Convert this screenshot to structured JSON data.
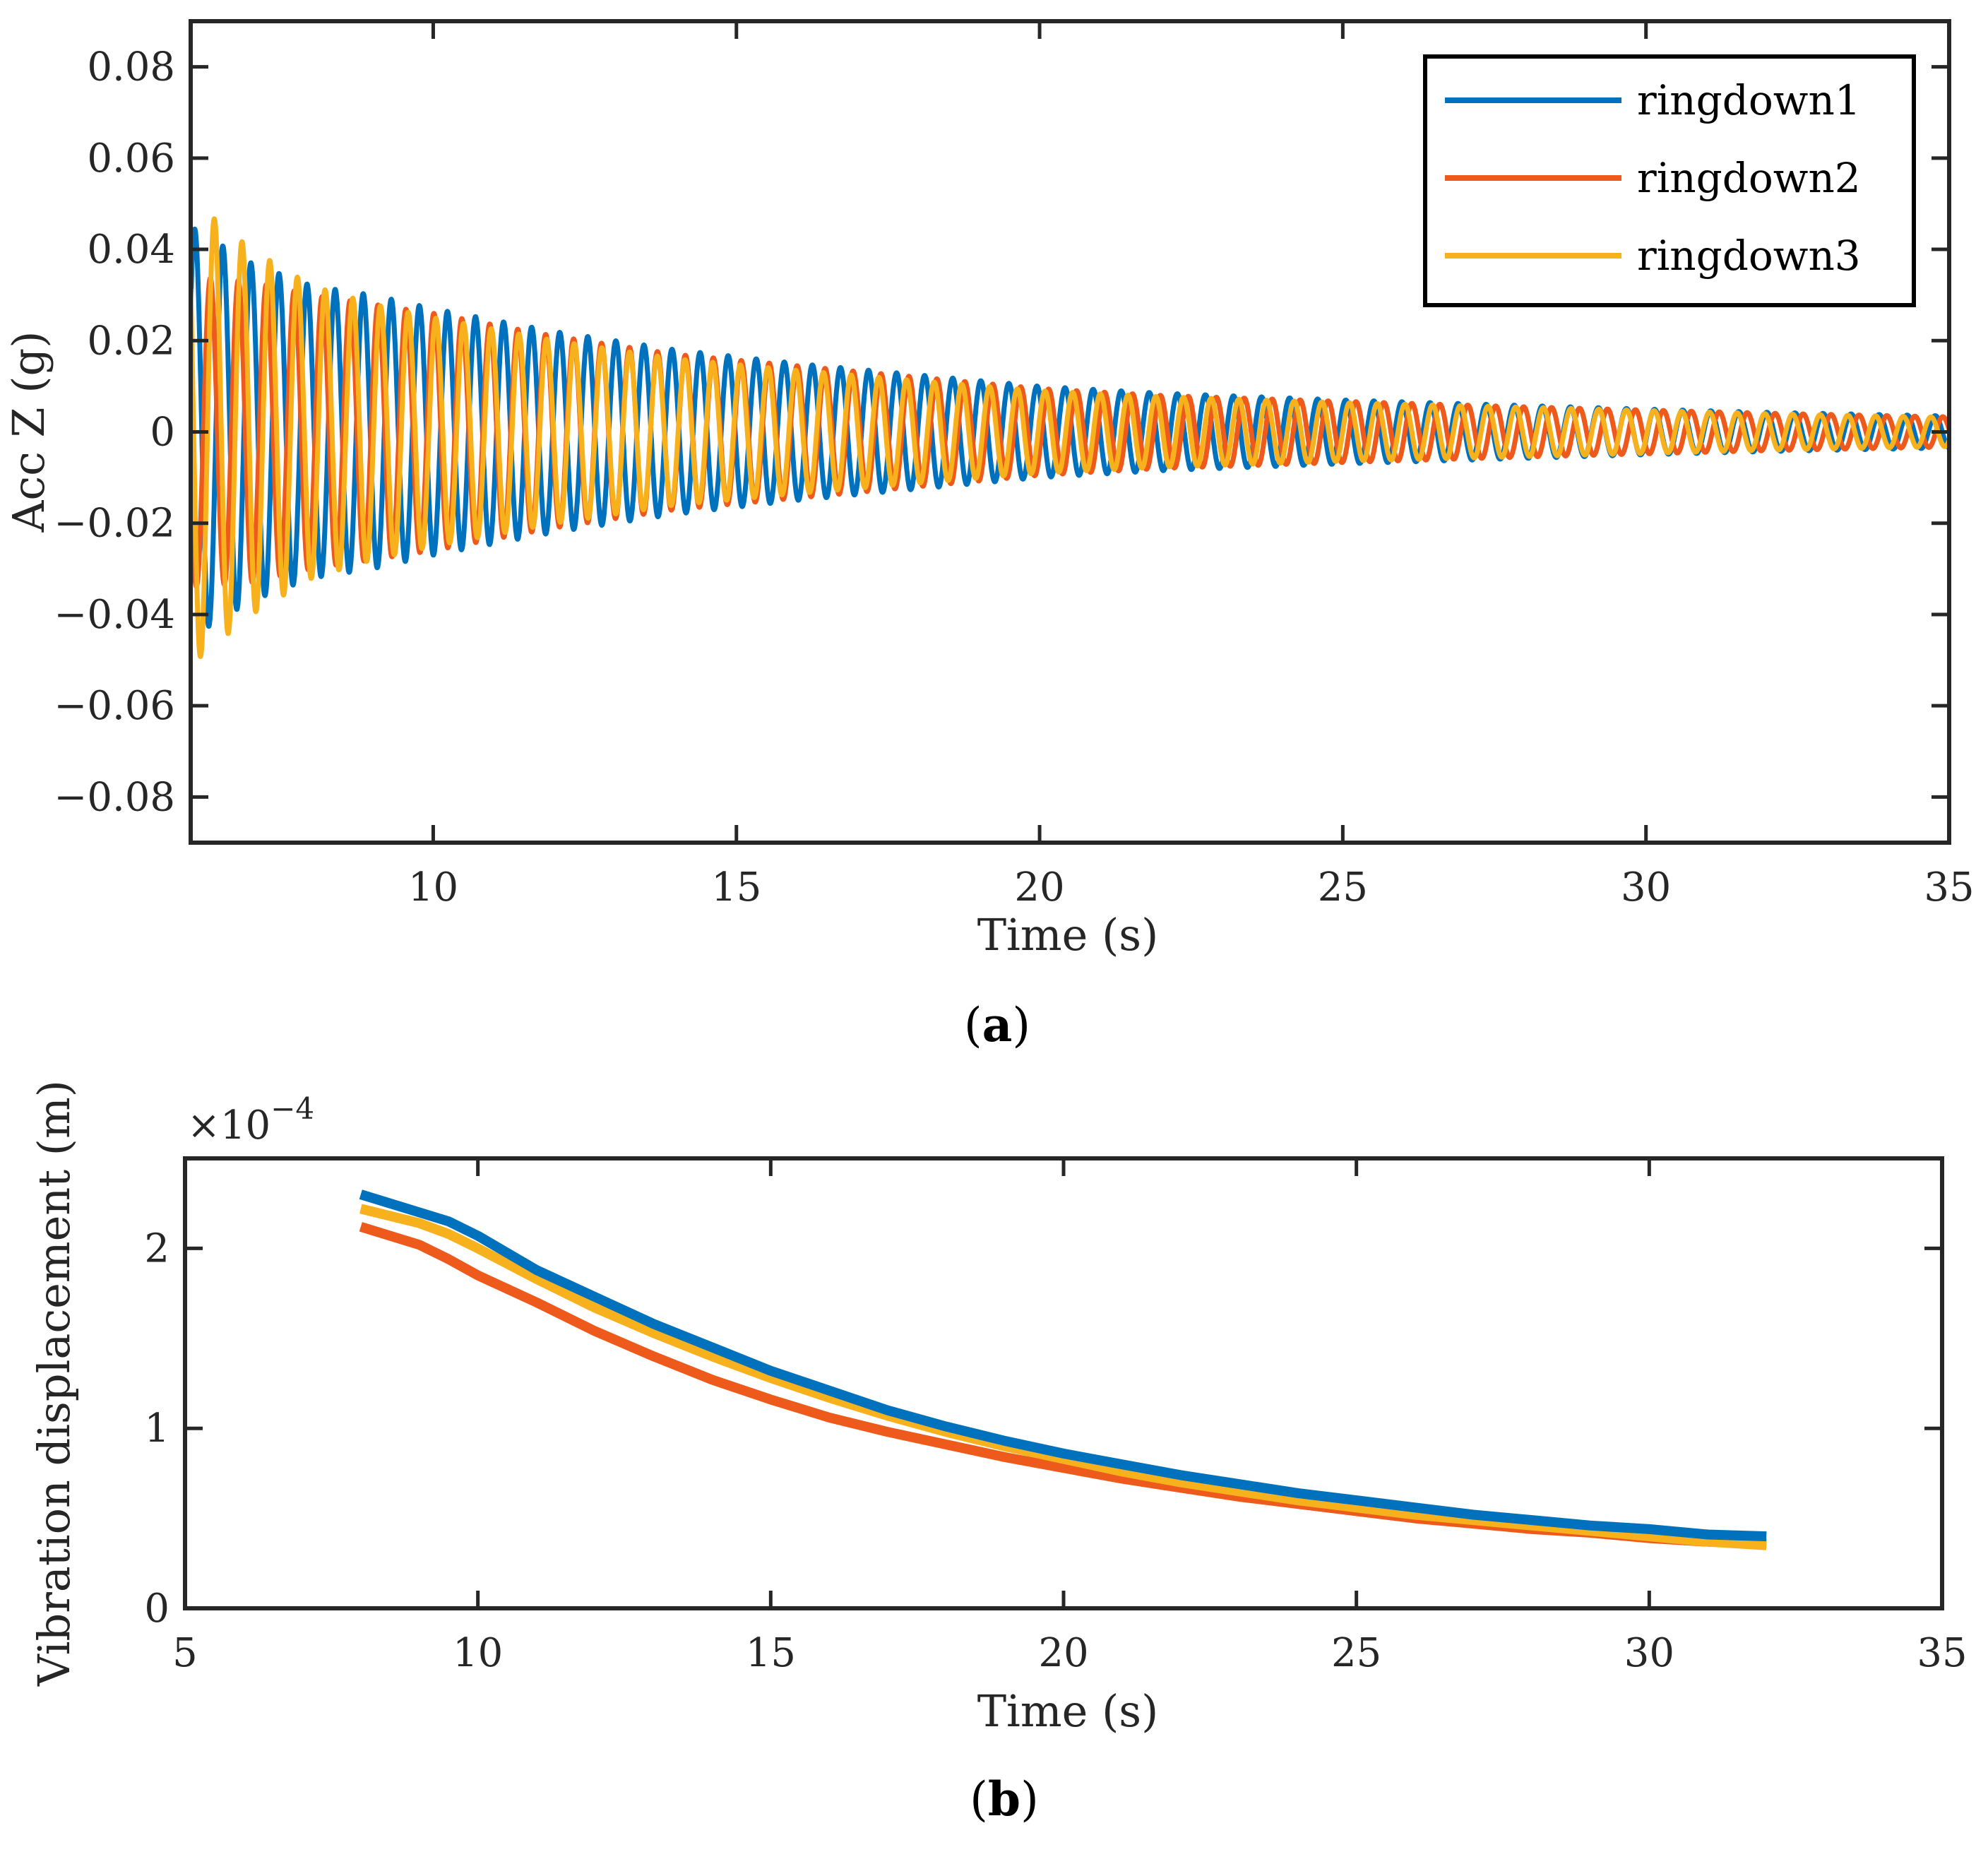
{
  "figure": {
    "caption_a": {
      "open": "(",
      "letter": "a",
      "close": ")"
    },
    "caption_b": {
      "open": "(",
      "letter": "b",
      "close": ")"
    }
  },
  "colors": {
    "ringdown1": "#0072BD",
    "ringdown2": "#EE5A1C",
    "ringdown3": "#F7B11C",
    "axis": "#262626"
  },
  "chart_data": [
    {
      "id": "a",
      "type": "line",
      "title": "",
      "xlabel": "Time (s)",
      "ylabel": "Acc Z (g)",
      "xlim": [
        6,
        35
      ],
      "ylim": [
        -0.09,
        0.09
      ],
      "grid": false,
      "xticks": [
        10,
        15,
        20,
        25,
        30,
        35
      ],
      "xtick_labels": [
        "10",
        "15",
        "20",
        "25",
        "30",
        "35"
      ],
      "yticks": [
        -0.08,
        -0.06,
        -0.04,
        -0.02,
        0,
        0.02,
        0.04,
        0.06,
        0.08
      ],
      "ytick_labels": [
        "−0.08",
        "−0.06",
        "−0.04",
        "−0.02",
        "0",
        "0.02",
        "0.04",
        "0.06",
        "0.08"
      ],
      "legend_position": "top-right",
      "series": [
        {
          "name": "ringdown1",
          "frequency_hz": 2.16,
          "phase_rad": 0.9,
          "envelope_t": [
            6,
            7,
            8,
            9,
            10,
            12,
            14,
            16,
            18,
            20,
            22,
            25,
            28,
            30,
            32,
            35
          ],
          "envelope_amp": [
            0.045,
            0.037,
            0.032,
            0.03,
            0.027,
            0.022,
            0.018,
            0.015,
            0.0125,
            0.01,
            0.0085,
            0.007,
            0.0058,
            0.005,
            0.0043,
            0.0035
          ]
        },
        {
          "name": "ringdown2",
          "frequency_hz": 2.17,
          "phase_rad": 3.3,
          "envelope_t": [
            6,
            7,
            8,
            9,
            10,
            12,
            14,
            16,
            18,
            20,
            22,
            25,
            28,
            30,
            32,
            35
          ],
          "envelope_amp": [
            0.034,
            0.033,
            0.03,
            0.028,
            0.026,
            0.021,
            0.017,
            0.0145,
            0.012,
            0.0095,
            0.008,
            0.0067,
            0.0055,
            0.0048,
            0.0041,
            0.0033
          ]
        },
        {
          "name": "ringdown3",
          "frequency_hz": 2.19,
          "phase_rad": 1.6,
          "envelope_t": [
            6,
            7,
            8,
            9,
            10,
            12,
            14,
            16,
            18,
            20,
            22,
            25,
            28,
            30,
            32,
            35
          ],
          "envelope_amp": [
            0.051,
            0.04,
            0.032,
            0.028,
            0.025,
            0.02,
            0.016,
            0.0135,
            0.0112,
            0.009,
            0.0077,
            0.0064,
            0.0054,
            0.0047,
            0.004,
            0.0032
          ]
        }
      ]
    },
    {
      "id": "b",
      "type": "line",
      "title": "",
      "xlabel": "Time (s)",
      "ylabel": "Vibration displacement (m)",
      "xlim": [
        5,
        35
      ],
      "ylim": [
        0,
        2.5
      ],
      "y_scale_exponent": {
        "base": "×10",
        "exponent": "−4"
      },
      "grid": false,
      "xticks": [
        5,
        10,
        15,
        20,
        25,
        30,
        35
      ],
      "xtick_labels": [
        "5",
        "10",
        "15",
        "20",
        "25",
        "30",
        "35"
      ],
      "yticks": [
        0,
        1,
        2
      ],
      "ytick_labels": [
        "0",
        "1",
        "2"
      ],
      "series": [
        {
          "name": "ringdown1",
          "x": [
            8,
            9,
            9.5,
            10,
            11,
            12,
            13,
            14,
            15,
            16,
            17,
            18,
            19,
            20,
            21,
            22,
            23,
            24,
            25,
            26,
            27,
            28,
            29,
            30,
            31,
            32
          ],
          "y": [
            2.3,
            2.2,
            2.15,
            2.07,
            1.88,
            1.73,
            1.58,
            1.45,
            1.32,
            1.21,
            1.1,
            1.01,
            0.93,
            0.86,
            0.8,
            0.74,
            0.69,
            0.64,
            0.6,
            0.56,
            0.52,
            0.49,
            0.46,
            0.44,
            0.41,
            0.4
          ]
        },
        {
          "name": "ringdown2",
          "x": [
            8,
            9,
            9.5,
            10,
            11,
            12,
            13,
            14,
            15,
            16,
            17,
            18,
            19,
            20,
            21,
            22,
            23,
            24,
            25,
            26,
            27,
            28,
            29,
            30,
            31,
            32
          ],
          "y": [
            2.12,
            2.02,
            1.94,
            1.85,
            1.7,
            1.54,
            1.4,
            1.27,
            1.16,
            1.06,
            0.98,
            0.91,
            0.84,
            0.78,
            0.72,
            0.67,
            0.62,
            0.58,
            0.54,
            0.5,
            0.47,
            0.44,
            0.42,
            0.39,
            0.37,
            0.36
          ]
        },
        {
          "name": "ringdown3",
          "x": [
            8,
            9,
            9.5,
            10,
            11,
            12,
            13,
            14,
            15,
            16,
            17,
            18,
            19,
            20,
            21,
            22,
            23,
            24,
            25,
            26,
            27,
            28,
            29,
            30,
            31,
            32
          ],
          "y": [
            2.22,
            2.14,
            2.08,
            2.0,
            1.83,
            1.67,
            1.53,
            1.4,
            1.28,
            1.17,
            1.07,
            0.98,
            0.9,
            0.83,
            0.76,
            0.7,
            0.65,
            0.6,
            0.56,
            0.52,
            0.49,
            0.46,
            0.43,
            0.4,
            0.37,
            0.35
          ]
        }
      ]
    }
  ]
}
